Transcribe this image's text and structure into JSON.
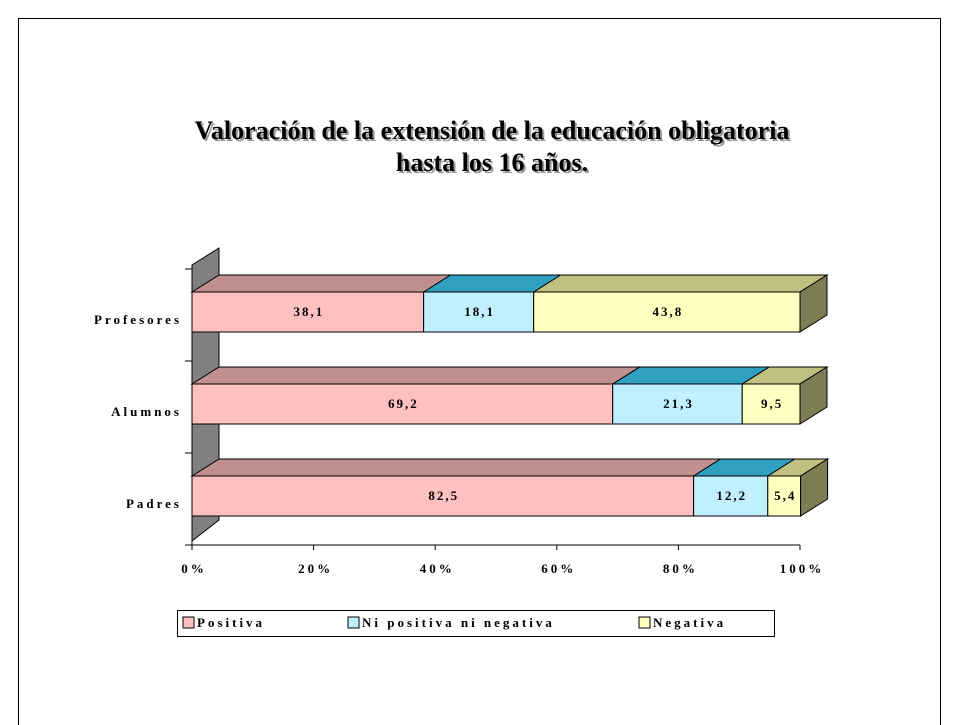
{
  "chart_data": {
    "type": "bar3d_stacked_horizontal",
    "title": "Valoración de la extensión de la educación obligatoria",
    "subtitle": "hasta los 16 años.",
    "categories": [
      "Profesores",
      "Alumnos",
      "Padres"
    ],
    "series": [
      {
        "name": "Positiva",
        "color": "#ffc0c0",
        "values": [
          38.1,
          69.2,
          82.5
        ],
        "value_labels": [
          "38,1",
          "69,2",
          "82,5"
        ]
      },
      {
        "name": "Ni positiva ni negativa",
        "color": "#c0f0ff",
        "values": [
          18.1,
          21.3,
          12.2
        ],
        "value_labels": [
          "18,1",
          "21,3",
          "12,2"
        ]
      },
      {
        "name": "Negativa",
        "color": "#ffffc0",
        "values": [
          43.8,
          9.5,
          5.4
        ],
        "value_labels": [
          "43,8",
          "9,5",
          "5,4"
        ]
      }
    ],
    "xlim": [
      0,
      100
    ],
    "xticks": [
      {
        "value": 0,
        "label": "0%"
      },
      {
        "value": 20,
        "label": "20%"
      },
      {
        "value": 40,
        "label": "40%"
      },
      {
        "value": 60,
        "label": "60%"
      },
      {
        "value": 80,
        "label": "80%"
      },
      {
        "value": 100,
        "label": "100%"
      }
    ],
    "legend": "bottom"
  }
}
